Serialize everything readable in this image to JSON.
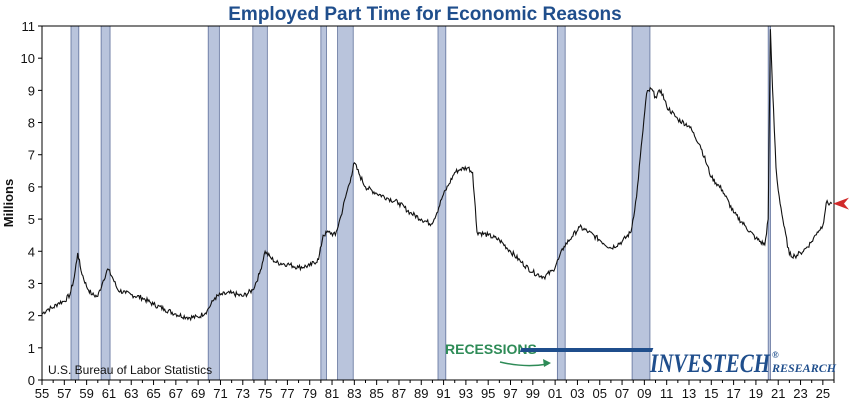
{
  "chart_data": {
    "type": "line",
    "title": "Employed Part Time for Economic Reasons",
    "ylabel": "Millions",
    "xlabel": "",
    "ylim": [
      0,
      11
    ],
    "xlim": [
      1955,
      2026
    ],
    "y_ticks": [
      0,
      1,
      2,
      3,
      4,
      5,
      6,
      7,
      8,
      9,
      10,
      11
    ],
    "x_ticks": [
      1955,
      1957,
      1959,
      1961,
      1963,
      1965,
      1967,
      1969,
      1971,
      1973,
      1975,
      1977,
      1979,
      1981,
      1983,
      1985,
      1987,
      1989,
      1991,
      1993,
      1995,
      1997,
      1999,
      2001,
      2003,
      2005,
      2007,
      2009,
      2011,
      2013,
      2015,
      2017,
      2019,
      2021,
      2023,
      2025
    ],
    "x_tick_labels": [
      "55",
      "57",
      "59",
      "61",
      "63",
      "65",
      "67",
      "69",
      "71",
      "73",
      "75",
      "77",
      "79",
      "81",
      "83",
      "85",
      "87",
      "89",
      "91",
      "93",
      "95",
      "97",
      "99",
      "01",
      "03",
      "05",
      "07",
      "09",
      "11",
      "13",
      "15",
      "17",
      "19",
      "21",
      "23",
      "25"
    ],
    "source": "U.S. Bureau of Labor Statistics",
    "recession_label": "RECESSIONS",
    "recessions": [
      [
        1957.6,
        1958.3
      ],
      [
        1960.3,
        1961.1
      ],
      [
        1969.9,
        1970.9
      ],
      [
        1973.9,
        1975.2
      ],
      [
        1980.0,
        1980.5
      ],
      [
        1981.5,
        1982.9
      ],
      [
        1990.5,
        1991.2
      ],
      [
        2001.2,
        2001.9
      ],
      [
        2007.9,
        2009.5
      ],
      [
        2020.1,
        2020.3
      ]
    ],
    "series": [
      {
        "values": [
          {
            "x": 1955.0,
            "y": 2.05
          },
          {
            "x": 1955.5,
            "y": 2.2
          },
          {
            "x": 1956.0,
            "y": 2.25
          },
          {
            "x": 1956.5,
            "y": 2.4
          },
          {
            "x": 1957.0,
            "y": 2.45
          },
          {
            "x": 1957.5,
            "y": 2.65
          },
          {
            "x": 1957.9,
            "y": 3.2
          },
          {
            "x": 1958.2,
            "y": 3.95
          },
          {
            "x": 1958.5,
            "y": 3.4
          },
          {
            "x": 1959.0,
            "y": 2.9
          },
          {
            "x": 1959.5,
            "y": 2.65
          },
          {
            "x": 1960.0,
            "y": 2.6
          },
          {
            "x": 1960.5,
            "y": 3.1
          },
          {
            "x": 1960.9,
            "y": 3.45
          },
          {
            "x": 1961.3,
            "y": 3.2
          },
          {
            "x": 1961.8,
            "y": 2.8
          },
          {
            "x": 1962.5,
            "y": 2.7
          },
          {
            "x": 1963.0,
            "y": 2.65
          },
          {
            "x": 1964.0,
            "y": 2.55
          },
          {
            "x": 1965.0,
            "y": 2.35
          },
          {
            "x": 1966.0,
            "y": 2.2
          },
          {
            "x": 1967.0,
            "y": 2.05
          },
          {
            "x": 1968.0,
            "y": 1.95
          },
          {
            "x": 1969.0,
            "y": 1.95
          },
          {
            "x": 1969.8,
            "y": 2.15
          },
          {
            "x": 1970.5,
            "y": 2.55
          },
          {
            "x": 1971.0,
            "y": 2.65
          },
          {
            "x": 1972.0,
            "y": 2.7
          },
          {
            "x": 1973.0,
            "y": 2.6
          },
          {
            "x": 1973.9,
            "y": 2.8
          },
          {
            "x": 1974.5,
            "y": 3.3
          },
          {
            "x": 1975.0,
            "y": 4.0
          },
          {
            "x": 1975.5,
            "y": 3.8
          },
          {
            "x": 1976.0,
            "y": 3.65
          },
          {
            "x": 1977.0,
            "y": 3.6
          },
          {
            "x": 1978.0,
            "y": 3.5
          },
          {
            "x": 1979.0,
            "y": 3.55
          },
          {
            "x": 1979.8,
            "y": 3.75
          },
          {
            "x": 1980.2,
            "y": 4.5
          },
          {
            "x": 1980.7,
            "y": 4.6
          },
          {
            "x": 1981.3,
            "y": 4.5
          },
          {
            "x": 1981.8,
            "y": 5.1
          },
          {
            "x": 1982.3,
            "y": 5.8
          },
          {
            "x": 1982.7,
            "y": 6.3
          },
          {
            "x": 1983.0,
            "y": 6.75
          },
          {
            "x": 1983.5,
            "y": 6.35
          },
          {
            "x": 1984.0,
            "y": 6.0
          },
          {
            "x": 1985.0,
            "y": 5.8
          },
          {
            "x": 1986.0,
            "y": 5.65
          },
          {
            "x": 1987.0,
            "y": 5.5
          },
          {
            "x": 1988.0,
            "y": 5.2
          },
          {
            "x": 1989.0,
            "y": 5.0
          },
          {
            "x": 1989.9,
            "y": 4.85
          },
          {
            "x": 1990.4,
            "y": 5.2
          },
          {
            "x": 1990.9,
            "y": 5.7
          },
          {
            "x": 1991.5,
            "y": 6.1
          },
          {
            "x": 1992.0,
            "y": 6.45
          },
          {
            "x": 1992.5,
            "y": 6.55
          },
          {
            "x": 1993.2,
            "y": 6.6
          },
          {
            "x": 1993.6,
            "y": 6.45
          },
          {
            "x": 1994.0,
            "y": 4.6
          },
          {
            "x": 1995.0,
            "y": 4.5
          },
          {
            "x": 1996.0,
            "y": 4.35
          },
          {
            "x": 1997.0,
            "y": 4.0
          },
          {
            "x": 1998.0,
            "y": 3.65
          },
          {
            "x": 1999.0,
            "y": 3.35
          },
          {
            "x": 2000.0,
            "y": 3.2
          },
          {
            "x": 2000.8,
            "y": 3.4
          },
          {
            "x": 2001.3,
            "y": 3.75
          },
          {
            "x": 2001.8,
            "y": 4.15
          },
          {
            "x": 2002.5,
            "y": 4.45
          },
          {
            "x": 2003.2,
            "y": 4.75
          },
          {
            "x": 2004.0,
            "y": 4.6
          },
          {
            "x": 2005.0,
            "y": 4.35
          },
          {
            "x": 2006.0,
            "y": 4.1
          },
          {
            "x": 2007.0,
            "y": 4.3
          },
          {
            "x": 2007.8,
            "y": 4.6
          },
          {
            "x": 2008.3,
            "y": 5.7
          },
          {
            "x": 2008.8,
            "y": 7.5
          },
          {
            "x": 2009.2,
            "y": 8.9
          },
          {
            "x": 2009.6,
            "y": 9.05
          },
          {
            "x": 2010.0,
            "y": 8.8
          },
          {
            "x": 2010.5,
            "y": 9.0
          },
          {
            "x": 2011.0,
            "y": 8.5
          },
          {
            "x": 2012.0,
            "y": 8.1
          },
          {
            "x": 2013.0,
            "y": 7.9
          },
          {
            "x": 2014.0,
            "y": 7.3
          },
          {
            "x": 2015.0,
            "y": 6.3
          },
          {
            "x": 2016.0,
            "y": 5.9
          },
          {
            "x": 2017.0,
            "y": 5.2
          },
          {
            "x": 2018.0,
            "y": 4.8
          },
          {
            "x": 2019.0,
            "y": 4.4
          },
          {
            "x": 2019.8,
            "y": 4.2
          },
          {
            "x": 2020.1,
            "y": 5.0
          },
          {
            "x": 2020.3,
            "y": 10.9
          },
          {
            "x": 2020.5,
            "y": 9.0
          },
          {
            "x": 2020.8,
            "y": 6.6
          },
          {
            "x": 2021.0,
            "y": 5.9
          },
          {
            "x": 2021.5,
            "y": 4.8
          },
          {
            "x": 2022.0,
            "y": 3.9
          },
          {
            "x": 2022.5,
            "y": 3.85
          },
          {
            "x": 2023.0,
            "y": 3.95
          },
          {
            "x": 2023.5,
            "y": 4.1
          },
          {
            "x": 2024.0,
            "y": 4.3
          },
          {
            "x": 2024.5,
            "y": 4.6
          },
          {
            "x": 2025.0,
            "y": 4.8
          },
          {
            "x": 2025.3,
            "y": 5.5
          },
          {
            "x": 2025.8,
            "y": 5.48
          }
        ]
      }
    ],
    "latest_marker_value": 5.48
  },
  "colors": {
    "title": "#1f4e8c",
    "recession_fill": "#b9c4dc",
    "recession_stroke": "#5e6f9a",
    "line": "#111111",
    "marker": "#d12a2a",
    "recession_label": "#2e8b57",
    "logo": "#1f4e8c"
  },
  "logo": {
    "main": "INVESTECH",
    "sub": "RESEARCH",
    "reg": "®"
  }
}
